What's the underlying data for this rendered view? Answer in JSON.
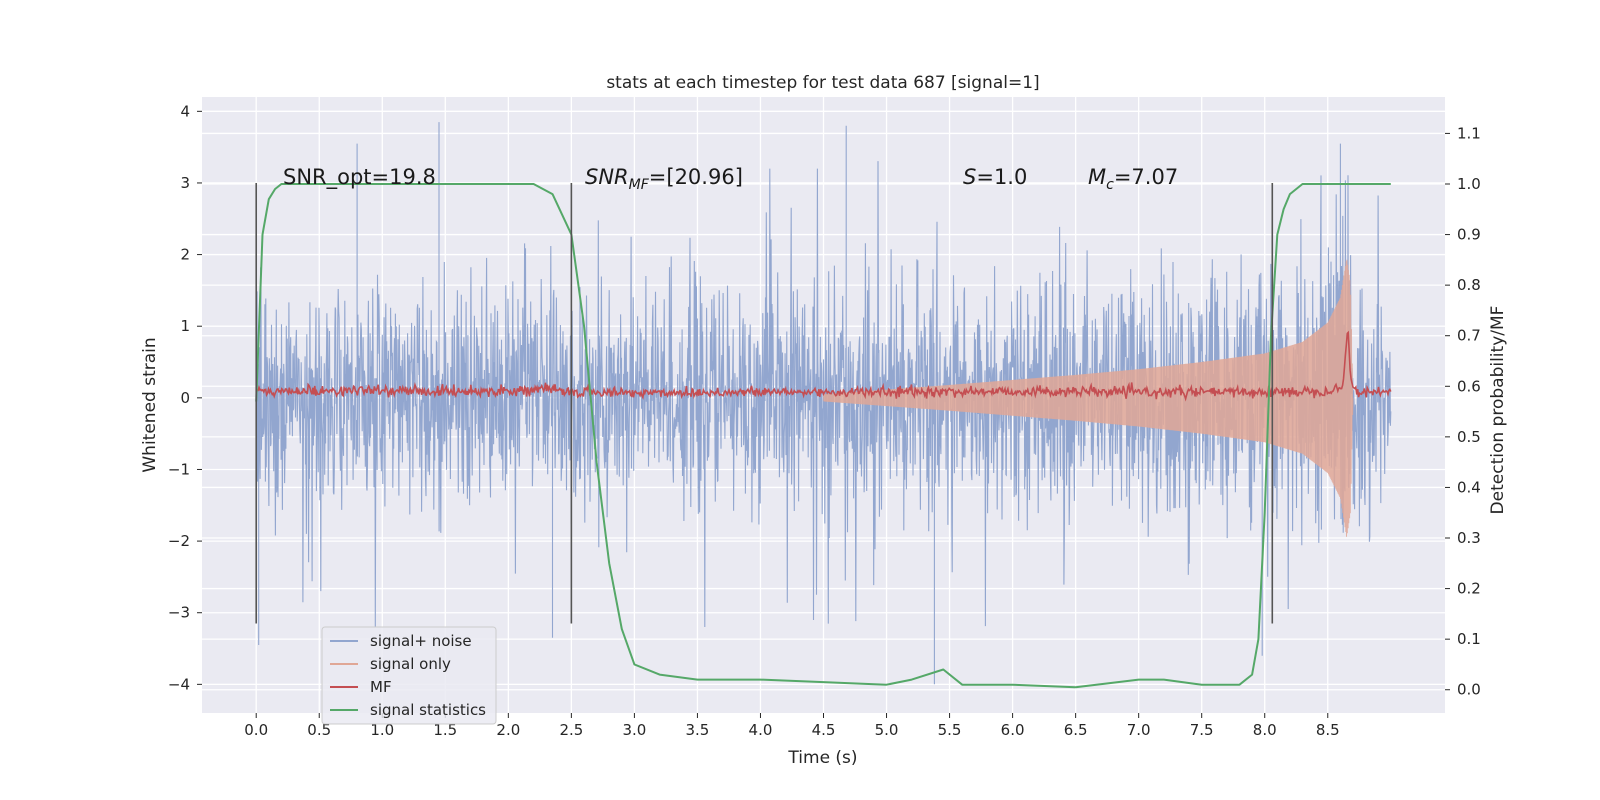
{
  "chart_data": {
    "type": "line",
    "title": "stats at each timestep for test data 687 [signal=1]",
    "xlabel": "Time (s)",
    "ylabel": "Whitened strain",
    "y2label": "Detection probability/MF",
    "xlim": [
      -0.43,
      9.43
    ],
    "ylim": [
      -4.4,
      4.2
    ],
    "y2lim": [
      -0.046,
      1.172
    ],
    "x_ticks": [
      0.0,
      0.5,
      1.0,
      1.5,
      2.0,
      2.5,
      3.0,
      3.5,
      4.0,
      4.5,
      5.0,
      5.5,
      6.0,
      6.5,
      7.0,
      7.5,
      8.0,
      8.5
    ],
    "x_tick_labels": [
      "0.0",
      "0.5",
      "1.0",
      "1.5",
      "2.0",
      "2.5",
      "3.0",
      "3.5",
      "4.0",
      "4.5",
      "5.0",
      "5.5",
      "6.0",
      "6.5",
      "7.0",
      "7.5",
      "8.0",
      "8.5"
    ],
    "y_ticks": [
      4,
      3,
      2,
      1,
      0,
      -1,
      -2,
      -3,
      -4
    ],
    "y_tick_labels": [
      "4",
      "3",
      "2",
      "1",
      "0",
      "−1",
      "−2",
      "−3",
      "−4"
    ],
    "y2_ticks": [
      1.1,
      1.0,
      0.9,
      0.8,
      0.7,
      0.6,
      0.5,
      0.4,
      0.3,
      0.2,
      0.1,
      0.0
    ],
    "y2_tick_labels": [
      "1.1",
      "1.0",
      "0.9",
      "0.8",
      "0.7",
      "0.6",
      "0.5",
      "0.4",
      "0.3",
      "0.2",
      "0.1",
      "0.0"
    ],
    "grid": true,
    "legend_position": "lower-left",
    "annotations": {
      "snr_opt": "SNR_opt=19.8",
      "snr_mf_main": "SNR",
      "snr_mf_sub": "MF",
      "snr_mf_rest": "=[20.96]",
      "s_main": "S",
      "s_rest": "=1.0",
      "mc_main": "M",
      "mc_sub": "c",
      "mc_rest": "=7.07"
    },
    "vertical_markers_x": [
      0.0,
      2.5,
      8.06
    ],
    "vertical_markers_y": [
      -3.15,
      3.0
    ],
    "series": [
      {
        "name": "signal+ noise",
        "axis": "left",
        "color": "#92a6cf",
        "kind": "noise",
        "x_range": [
          0.0,
          9.0
        ],
        "typical_amplitude": 0.75,
        "extreme_positive": [
          {
            "x": 1.45,
            "y": 3.85
          },
          {
            "x": 4.68,
            "y": 3.8
          },
          {
            "x": 0.8,
            "y": 3.55
          },
          {
            "x": 8.6,
            "y": 3.55
          }
        ],
        "extreme_negative": [
          {
            "x": 5.38,
            "y": -4.0
          },
          {
            "x": 0.02,
            "y": -3.45
          },
          {
            "x": 7.98,
            "y": -3.6
          },
          {
            "x": 2.35,
            "y": -3.35
          }
        ]
      },
      {
        "name": "signal only",
        "axis": "left",
        "color": "#e0a796",
        "kind": "chirp",
        "x": [
          4.5,
          5.5,
          6.0,
          6.5,
          7.0,
          7.5,
          8.0,
          8.3,
          8.5,
          8.6,
          8.65,
          8.68,
          8.7
        ],
        "envelope": [
          0.05,
          0.18,
          0.25,
          0.32,
          0.4,
          0.5,
          0.62,
          0.78,
          1.05,
          1.4,
          1.95,
          1.6,
          0.0
        ]
      },
      {
        "name": "MF",
        "axis": "left",
        "color": "#c44e52",
        "x": [
          0.0,
          0.5,
          1.0,
          1.5,
          2.0,
          2.3,
          2.5,
          3.0,
          4.0,
          5.0,
          6.0,
          7.0,
          8.0,
          8.5,
          8.62,
          8.64,
          8.66,
          8.68,
          8.7,
          8.75,
          9.0
        ],
        "y": [
          0.08,
          0.1,
          0.1,
          0.09,
          0.1,
          0.12,
          0.08,
          0.07,
          0.08,
          0.08,
          0.09,
          0.08,
          0.08,
          0.1,
          0.15,
          0.6,
          1.0,
          0.3,
          0.15,
          0.08,
          0.08
        ]
      },
      {
        "name": "signal statistics",
        "axis": "right",
        "color": "#55a868",
        "x": [
          0.0,
          0.05,
          0.1,
          0.15,
          0.2,
          0.3,
          0.5,
          1.0,
          1.5,
          2.0,
          2.2,
          2.35,
          2.5,
          2.6,
          2.7,
          2.8,
          2.9,
          3.0,
          3.2,
          3.5,
          4.0,
          4.5,
          5.0,
          5.2,
          5.45,
          5.6,
          6.0,
          6.5,
          7.0,
          7.2,
          7.5,
          7.8,
          7.9,
          7.95,
          8.0,
          8.05,
          8.1,
          8.15,
          8.2,
          8.3,
          8.4,
          8.5,
          8.6,
          8.8,
          9.0
        ],
        "y": [
          0.57,
          0.9,
          0.97,
          0.99,
          1.0,
          1.0,
          1.0,
          1.0,
          1.0,
          1.0,
          1.0,
          0.98,
          0.9,
          0.72,
          0.45,
          0.25,
          0.12,
          0.05,
          0.03,
          0.02,
          0.02,
          0.015,
          0.01,
          0.02,
          0.04,
          0.01,
          0.01,
          0.005,
          0.02,
          0.02,
          0.01,
          0.01,
          0.03,
          0.1,
          0.35,
          0.7,
          0.9,
          0.95,
          0.98,
          1.0,
          1.0,
          1.0,
          1.0,
          1.0,
          1.0
        ]
      }
    ]
  }
}
